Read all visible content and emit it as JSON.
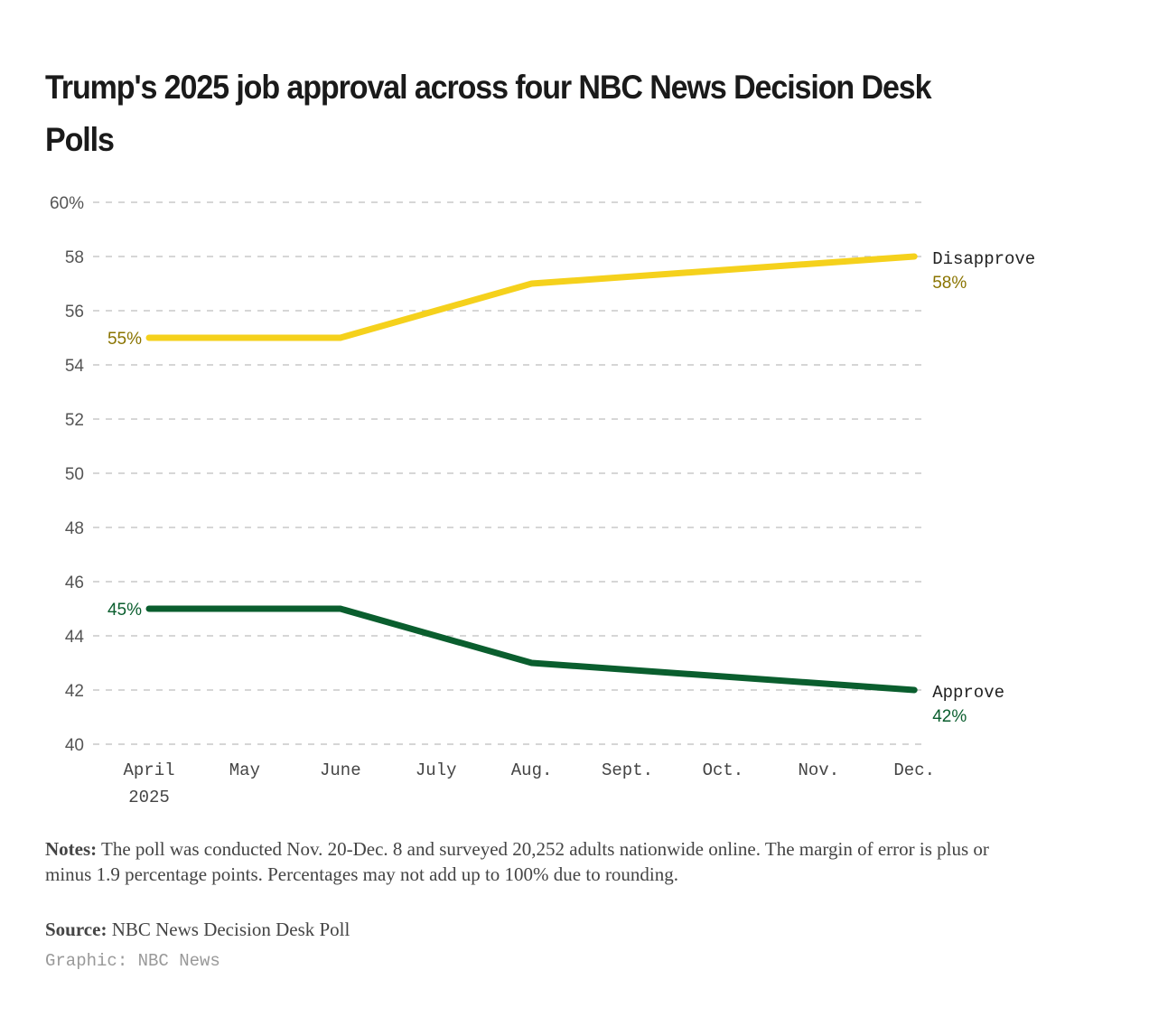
{
  "chart_data": {
    "type": "line",
    "title": "Trump's 2025 job approval across four NBC News Decision Desk Polls",
    "categories": [
      "April",
      "May",
      "June",
      "July",
      "Aug.",
      "Sept.",
      "Oct.",
      "Nov.",
      "Dec."
    ],
    "category_sublabels": [
      "2025",
      "",
      "",
      "",
      "",
      "",
      "",
      "",
      ""
    ],
    "yticks": [
      "60%",
      "58",
      "56",
      "54",
      "52",
      "50",
      "48",
      "46",
      "44",
      "42",
      "40"
    ],
    "ylim": [
      40,
      60
    ],
    "grid": true,
    "series": [
      {
        "name": "Disapprove",
        "color": "#f5d11c",
        "labelColor": "#8a7400",
        "points": [
          [
            0,
            55
          ],
          [
            2,
            55
          ],
          [
            4,
            57
          ],
          [
            8,
            58
          ]
        ],
        "start_label": "55%",
        "end_label": "58%"
      },
      {
        "name": "Approve",
        "color": "#0a5e2e",
        "labelColor": "#0a5e2e",
        "points": [
          [
            0,
            45
          ],
          [
            2,
            45
          ],
          [
            4,
            43
          ],
          [
            8,
            42
          ]
        ],
        "start_label": "45%",
        "end_label": "42%"
      }
    ]
  },
  "notes_label": "Notes:",
  "notes_text": " The poll was conducted Nov. 20-Dec. 8 and surveyed 20,252 adults nationwide online. The margin of error is plus or minus 1.9 percentage points. Percentages may not add up to 100% due to rounding.",
  "source_label": "Source:",
  "source_text": " NBC News Decision Desk Poll",
  "credit": "Graphic: NBC News"
}
